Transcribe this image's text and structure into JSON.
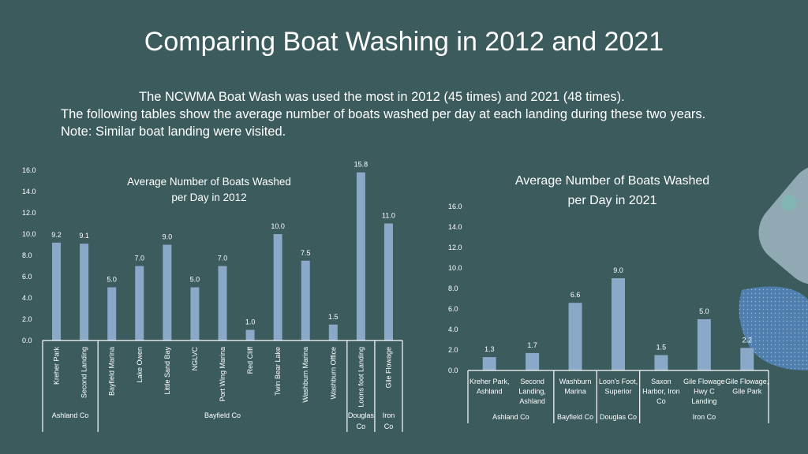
{
  "title": "Comparing Boat Washing in 2012 and 2021",
  "intro": [
    "The NCWMA Boat Wash was used the most in 2012 (45 times) and 2021 (48 times).",
    "The following tables show the average number of boats washed per day at each landing during these two years.",
    "Note: Similar boat landing were visited."
  ],
  "colors": {
    "background": "#3b5b5d",
    "bar": "#8aa9c8",
    "text": "#ffffff"
  },
  "chart_data": [
    {
      "type": "bar",
      "title": "Average Number of Boats Washed per Day in 2012",
      "title_lines": [
        "Average Number of Boats Washed",
        "per Day in 2012"
      ],
      "categories": [
        "Kreher Park",
        "Second Landing",
        "Bayfield Marina",
        "Lake Owen",
        "Little Sand Bay",
        "NGLVC",
        "Port Wing Marina",
        "Red Cliff",
        "Twin Bear Lake",
        "Washburn Marina",
        "Washburn Office",
        "Loons foot Landing",
        "Gile Flowage"
      ],
      "values": [
        9.2,
        9.1,
        5.0,
        7.0,
        9.0,
        5.0,
        7.0,
        1.0,
        10.0,
        7.5,
        1.5,
        15.8,
        11.0
      ],
      "value_labels": [
        "9.2",
        "9.1",
        "5.0",
        "7.0",
        "9.0",
        "5.0",
        "7.0",
        "1.0",
        "10.0",
        "7.5",
        "1.5",
        "15.8",
        "11.0"
      ],
      "groups": [
        {
          "label": "Ashland Co",
          "count": 2
        },
        {
          "label": "Bayfield Co",
          "count": 9
        },
        {
          "label": "Douglas Co",
          "count": 1
        },
        {
          "label": "Iron Co",
          "count": 1
        }
      ],
      "yticks": [
        "0.0",
        "2.0",
        "4.0",
        "6.0",
        "8.0",
        "10.0",
        "12.0",
        "14.0",
        "16.0"
      ],
      "ylim": [
        0,
        16
      ],
      "grid": false
    },
    {
      "type": "bar",
      "title": "Average Number of Boats Washed per Day in 2021",
      "title_lines": [
        "Average Number of Boats Washed",
        "per Day in 2021"
      ],
      "categories": [
        "Kreher Park, Ashland",
        "Second Landing, Ashland",
        "Washburn Marina",
        "Loon's Foot, Superior",
        "Saxon Harbor, Iron Co",
        "Gile Flowage Hwy C Landing",
        "Gile Flowage, Gile Park"
      ],
      "category_lines": [
        [
          "Kreher Park,",
          "Ashland"
        ],
        [
          "Second",
          "Landing,",
          "Ashland"
        ],
        [
          "Washburn",
          "Marina"
        ],
        [
          "Loon's Foot,",
          "Superior"
        ],
        [
          "Saxon",
          "Harbor, Iron",
          "Co"
        ],
        [
          "Gile Flowage",
          "Hwy C",
          "Landing"
        ],
        [
          "Gile Flowage,",
          "Gile Park"
        ]
      ],
      "values": [
        1.3,
        1.7,
        6.6,
        9.0,
        1.5,
        5.0,
        2.2
      ],
      "value_labels": [
        "1.3",
        "1.7",
        "6.6",
        "9.0",
        "1.5",
        "5.0",
        "2.2"
      ],
      "groups": [
        {
          "label": "Ashland Co",
          "count": 2
        },
        {
          "label": "Bayfield Co",
          "count": 1
        },
        {
          "label": "Douglas Co",
          "count": 1
        },
        {
          "label": "Iron Co",
          "count": 3
        }
      ],
      "yticks": [
        "0.0",
        "2.0",
        "4.0",
        "6.0",
        "8.0",
        "10.0",
        "12.0",
        "14.0",
        "16.0"
      ],
      "ylim": [
        0,
        16
      ],
      "grid": false
    }
  ]
}
